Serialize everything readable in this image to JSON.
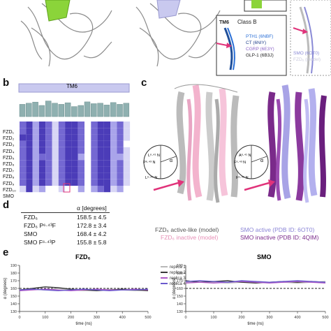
{
  "panel_labels": {
    "b": "b",
    "c": "c",
    "d": "d",
    "e": "e"
  },
  "top_inset": {
    "tm6": "TM6",
    "class_b": "Class B",
    "entries": [
      {
        "text": "PTH1 (6NBF)",
        "color": "#2a6fd6"
      },
      {
        "text": "CT (6NIY)",
        "color": "#1f3f8a"
      },
      {
        "text": "CGRP (6E3Y)",
        "color": "#8a63c7"
      },
      {
        "text": "GLP-1 (6B3J)",
        "color": "#222222"
      }
    ],
    "right_entries": [
      {
        "text": "SMO (6OT0)",
        "color": "#8a8ad6"
      },
      {
        "text": "FZD₆ (model)",
        "color": "#c9c9dd"
      }
    ]
  },
  "panel_b": {
    "tm6_label": "TM6",
    "dots_row": "• · · · · · · · · · · · · · · · · ·",
    "rows": [
      {
        "label": "FZD₁"
      },
      {
        "label": "FZD₂"
      },
      {
        "label": "FZD₃"
      },
      {
        "label": "FZD₄"
      },
      {
        "label": "FZD₅"
      },
      {
        "label": "FZD₆"
      },
      {
        "label": "FZD₇"
      },
      {
        "label": "FZD₈"
      },
      {
        "label": "FZD₉"
      },
      {
        "label": "FZD₁₀"
      },
      {
        "label": "SMO"
      }
    ],
    "smo_seq": "ILAGFVLR"
  },
  "panel_c": {
    "left_caption1": "FZD₆ active-like (model)",
    "left_caption2": "FZD₆ inactive (model)",
    "right_caption1": "SMO active (PDB ID: 6OT0)",
    "right_caption2": "SMO inactive (PDB ID: 4QIM)",
    "left_circle_labels": [
      "L⁶·⁴¹ N",
      "P⁶·⁴³ N",
      "L⁶·⁴⁵ N"
    ],
    "right_circle_labels": [
      "A⁶·⁴¹ N",
      "F⁶·⁴³ N",
      "F⁶·⁴⁵ N"
    ],
    "alpha": "α"
  },
  "panel_d": {
    "header": "α [degrees]",
    "rows": [
      {
        "name": "FZD₆",
        "value": "158.5 ± 4.5"
      },
      {
        "name": "FZD₆ P⁶·⁴³F",
        "value": "172.8 ± 3.4"
      },
      {
        "name": "SMO",
        "value": "168.4 ± 4.2"
      },
      {
        "name": "SMO F⁶·⁴³P",
        "value": "155.8 ± 5.8"
      }
    ]
  },
  "panel_e": {
    "left_title": "FZD₆",
    "right_title": "SMO",
    "xlabel": "time (ns)",
    "ylabel": "α (degrees)",
    "legend": [
      "replica 1",
      "replica 2",
      "replica 3",
      "replica 4"
    ],
    "legend_colors": [
      "#b8b8b8",
      "#3a3a3a",
      "#b05ac8",
      "#6a5acd"
    ]
  },
  "chart_data": [
    {
      "type": "line",
      "title": "FZD₆",
      "xlabel": "time (ns)",
      "ylabel": "α (degrees)",
      "xlim": [
        0,
        500
      ],
      "ylim": [
        130,
        190
      ],
      "x_ticks": [
        0,
        100,
        200,
        300,
        400,
        500
      ],
      "y_ticks": [
        130,
        140,
        150,
        160,
        170,
        180,
        190
      ],
      "reference_line": 160,
      "series": [
        {
          "name": "replica 1",
          "color": "#b8b8b8",
          "x": [
            0,
            50,
            100,
            150,
            200,
            250,
            300,
            350,
            400,
            450,
            500
          ],
          "values": [
            157,
            159,
            158,
            160,
            158,
            157,
            158,
            159,
            158,
            157,
            158
          ]
        },
        {
          "name": "replica 2",
          "color": "#3a3a3a",
          "x": [
            0,
            50,
            100,
            150,
            200,
            250,
            300,
            350,
            400,
            450,
            500
          ],
          "values": [
            158,
            160,
            162,
            161,
            159,
            158,
            157,
            158,
            159,
            158,
            157
          ]
        },
        {
          "name": "replica 3",
          "color": "#b05ac8",
          "x": [
            0,
            50,
            100,
            150,
            200,
            250,
            300,
            350,
            400,
            450,
            500
          ],
          "values": [
            157,
            158,
            159,
            158,
            157,
            158,
            159,
            158,
            158,
            159,
            158
          ]
        },
        {
          "name": "replica 4",
          "color": "#6a5acd",
          "x": [
            0,
            50,
            100,
            150,
            200,
            250,
            300,
            350,
            400,
            450,
            500
          ],
          "values": [
            158,
            159,
            158,
            157,
            158,
            159,
            158,
            157,
            158,
            158,
            159
          ]
        }
      ]
    },
    {
      "type": "line",
      "title": "SMO",
      "xlabel": "time (ns)",
      "ylabel": "α (degrees)",
      "xlim": [
        0,
        500
      ],
      "ylim": [
        130,
        190
      ],
      "x_ticks": [
        0,
        100,
        200,
        300,
        400,
        500
      ],
      "y_ticks": [
        130,
        140,
        150,
        160,
        170,
        180,
        190
      ],
      "reference_line": 160,
      "series": [
        {
          "name": "replica 1",
          "color": "#b8b8b8",
          "x": [
            0,
            50,
            100,
            150,
            200,
            250,
            300,
            350,
            400,
            450,
            500
          ],
          "values": [
            168,
            169,
            168,
            167,
            168,
            169,
            168,
            168,
            167,
            168,
            169
          ]
        },
        {
          "name": "replica 2",
          "color": "#3a3a3a",
          "x": [
            0,
            50,
            100,
            150,
            200,
            250,
            300,
            350,
            400,
            450,
            500
          ],
          "values": [
            170,
            168,
            169,
            170,
            168,
            167,
            168,
            169,
            168,
            169,
            168
          ]
        },
        {
          "name": "replica 3",
          "color": "#b05ac8",
          "x": [
            0,
            50,
            100,
            150,
            200,
            250,
            300,
            350,
            400,
            450,
            500
          ],
          "values": [
            167,
            168,
            167,
            168,
            169,
            168,
            167,
            168,
            169,
            168,
            167
          ]
        },
        {
          "name": "replica 4",
          "color": "#6a5acd",
          "x": [
            0,
            50,
            100,
            150,
            200,
            250,
            300,
            350,
            400,
            450,
            500
          ],
          "values": [
            169,
            170,
            169,
            168,
            170,
            169,
            168,
            169,
            170,
            169,
            168
          ]
        }
      ]
    }
  ]
}
